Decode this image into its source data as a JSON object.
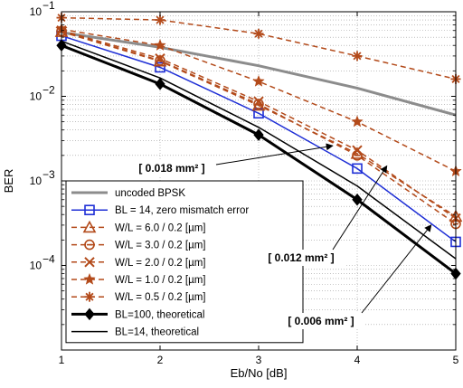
{
  "chart_data": {
    "type": "line",
    "xlabel": "Eb/No [dB]",
    "ylabel": "BER",
    "xlim": [
      1,
      5
    ],
    "ylim": [
      1e-05,
      0.1
    ],
    "y_scale": "log",
    "grid": true,
    "legend_position": "bottom-left",
    "x_ticks": [
      "1",
      "2",
      "3",
      "4",
      "5"
    ],
    "y_ticks": [
      {
        "value": 0.1,
        "base": "10",
        "exp": "−1"
      },
      {
        "value": 0.01,
        "base": "10",
        "exp": "−2"
      },
      {
        "value": 0.001,
        "base": "10",
        "exp": "−3"
      },
      {
        "value": 0.0001,
        "base": "10",
        "exp": "−4"
      }
    ],
    "series": [
      {
        "name": "uncoded BPSK",
        "color": "#8c8c8c",
        "style": "solid",
        "marker": "none",
        "width": 3,
        "x": [
          1,
          2,
          3,
          4,
          5
        ],
        "y": [
          0.057,
          0.038,
          0.023,
          0.0125,
          0.006
        ]
      },
      {
        "name": "BL = 14, zero mismatch error",
        "color": "#1f2fd6",
        "style": "solid",
        "marker": "square",
        "width": 1.5,
        "x": [
          1,
          2,
          3,
          4,
          5
        ],
        "y": [
          0.052,
          0.022,
          0.0063,
          0.0014,
          0.00019
        ]
      },
      {
        "name": "W/L = 6.0 / 0.2 [µm]",
        "color": "#b34a1a",
        "style": "dashed",
        "marker": "triangle",
        "width": 1.5,
        "x": [
          1,
          2,
          3,
          4,
          5
        ],
        "y": [
          0.058,
          0.026,
          0.0078,
          0.0021,
          0.00038
        ]
      },
      {
        "name": "W/L = 3.0 / 0.2 [µm]",
        "color": "#b34a1a",
        "style": "dashed",
        "marker": "circle-dash",
        "width": 1.5,
        "x": [
          1,
          2,
          3,
          4,
          5
        ],
        "y": [
          0.059,
          0.0265,
          0.0081,
          0.002,
          0.00031
        ]
      },
      {
        "name": "W/L = 2.0 / 0.2 [µm]",
        "color": "#b34a1a",
        "style": "dashed",
        "marker": "x",
        "width": 1.5,
        "x": [
          1,
          2,
          3,
          4,
          5
        ],
        "y": [
          0.06,
          0.028,
          0.0087,
          0.0023,
          0.00036
        ]
      },
      {
        "name": "W/L = 1.0 / 0.2 [µm]",
        "color": "#b34a1a",
        "style": "dashed",
        "marker": "star",
        "width": 1.5,
        "x": [
          1,
          2,
          3,
          4,
          5
        ],
        "y": [
          0.062,
          0.04,
          0.015,
          0.005,
          0.0013
        ]
      },
      {
        "name": "W/L = 0.5 / 0.2 [µm]",
        "color": "#b34a1a",
        "style": "dashed",
        "marker": "asterisk",
        "width": 1.5,
        "x": [
          1,
          2,
          3,
          4,
          5
        ],
        "y": [
          0.085,
          0.08,
          0.055,
          0.03,
          0.016
        ]
      },
      {
        "name": "BL=100, theoretical",
        "color": "#000000",
        "style": "solid",
        "marker": "diamond",
        "width": 3,
        "x": [
          1,
          2,
          3,
          4,
          5
        ],
        "y": [
          0.04,
          0.014,
          0.0035,
          0.0006,
          8e-05
        ]
      },
      {
        "name": "BL=14,   theoretical",
        "color": "#000000",
        "style": "solid",
        "marker": "none",
        "width": 1.5,
        "x": [
          1,
          2,
          3,
          4,
          5
        ],
        "y": [
          0.045,
          0.0165,
          0.0043,
          0.00087,
          0.00012
        ]
      }
    ],
    "annotations": [
      {
        "text": "[ 0.018 mm² ]",
        "target": [
          3.75,
          0.0026
        ]
      },
      {
        "text": "[ 0.012 mm² ]",
        "target": [
          4.3,
          0.0015
        ]
      },
      {
        "text": "[ 0.006 mm² ]",
        "target": [
          4.75,
          0.0003
        ]
      }
    ]
  }
}
